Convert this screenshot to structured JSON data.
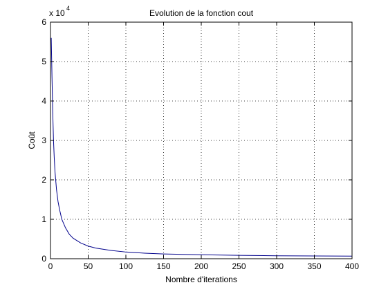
{
  "chart_data": {
    "type": "line",
    "title": "Evolution de la fonction cout",
    "xlabel": "Nombre d'iterations",
    "ylabel": "Coût",
    "y_exponent_label": "x 10",
    "y_exponent_power": "4",
    "xlim": [
      0,
      400
    ],
    "ylim": [
      0,
      6
    ],
    "x_ticks": [
      0,
      50,
      100,
      150,
      200,
      250,
      300,
      350,
      400
    ],
    "x_tick_labels": [
      "0",
      "50",
      "100",
      "150",
      "200",
      "250",
      "300",
      "350",
      "400"
    ],
    "y_ticks": [
      0,
      1,
      2,
      3,
      4,
      5,
      6
    ],
    "y_tick_labels": [
      "0",
      "1",
      "2",
      "3",
      "4",
      "5",
      "6"
    ],
    "grid": true,
    "grid_style": "dotted",
    "line_color": "#00008b",
    "series": [
      {
        "x": [
          1,
          2,
          3,
          4,
          5,
          6,
          8,
          10,
          12,
          15,
          20,
          25,
          30,
          40,
          50,
          60,
          80,
          100,
          125,
          150,
          175,
          200,
          250,
          300,
          350,
          400
        ],
        "y": [
          5.6,
          4.6,
          3.7,
          3.0,
          2.55,
          2.2,
          1.75,
          1.45,
          1.25,
          1.0,
          0.78,
          0.62,
          0.52,
          0.4,
          0.32,
          0.27,
          0.21,
          0.17,
          0.14,
          0.12,
          0.11,
          0.1,
          0.085,
          0.075,
          0.07,
          0.065
        ]
      }
    ]
  }
}
